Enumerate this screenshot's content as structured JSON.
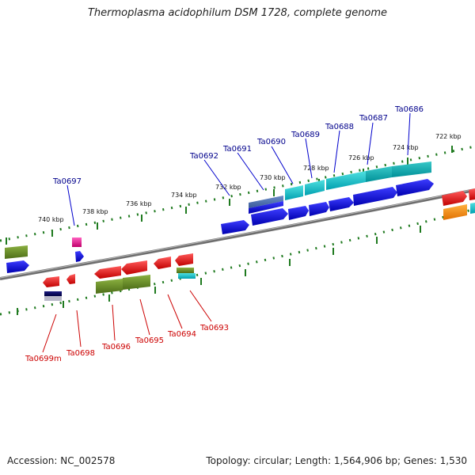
{
  "title": "Thermoplasma acidophilum DSM 1728, complete genome",
  "footer": {
    "accession": "Accession: NC_002578",
    "topology": "Topology: circular; Length: 1,564,906 bp; Genes: 1,530"
  },
  "colors": {
    "backbone": "#7a7a7a",
    "tick": "#1f7a1f",
    "forward_label": "#00008b",
    "reverse_label": "#cc0000"
  },
  "ticks": [
    "722 kbp",
    "724 kbp",
    "726 kbp",
    "728 kbp",
    "730 kbp",
    "732 kbp",
    "734 kbp",
    "736 kbp",
    "738 kbp",
    "740 kbp"
  ],
  "forward_labels": [
    "Ta0686",
    "Ta0687",
    "Ta0688",
    "Ta0689",
    "Ta0690",
    "Ta0691",
    "Ta0692",
    "Ta0697"
  ],
  "reverse_labels": [
    "Ta0693",
    "Ta0694",
    "Ta0695",
    "Ta0696",
    "Ta0698",
    "Ta0699m"
  ]
}
